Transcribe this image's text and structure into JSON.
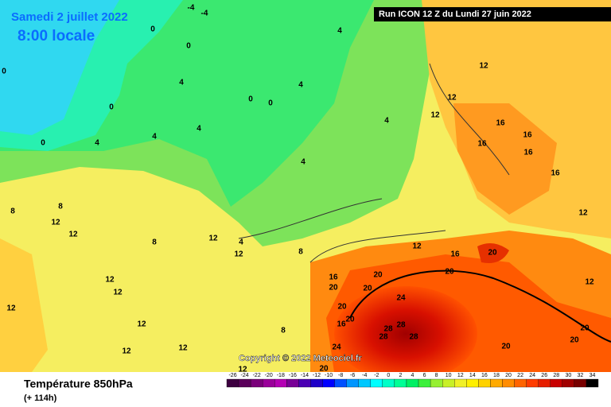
{
  "header": {
    "date": "Samedi 2 juillet 2022",
    "time": "8:00 locale",
    "run": "Run ICON 12 Z du Lundi 27 juin 2022"
  },
  "copyright": "Copyright © 2022 Meteociel.fr",
  "legend": {
    "title": "Température 850hPa",
    "subtitle": "(+ 114h)",
    "ticks": [
      -26,
      -24,
      -22,
      -20,
      -18,
      -16,
      -14,
      -12,
      -10,
      -8,
      -6,
      -4,
      -2,
      0,
      2,
      4,
      6,
      8,
      10,
      12,
      14,
      16,
      18,
      20,
      22,
      24,
      26,
      28,
      30,
      32,
      34
    ],
    "colors": [
      "#3d0040",
      "#5a005a",
      "#7a007a",
      "#9a009a",
      "#b400b4",
      "#780096",
      "#4b00b4",
      "#1e00c8",
      "#0000ff",
      "#0050ff",
      "#0096ff",
      "#00c8ff",
      "#00ffff",
      "#00ffc8",
      "#00ff96",
      "#00f064",
      "#3cf03c",
      "#96f032",
      "#c8f028",
      "#f0f028",
      "#fff000",
      "#ffd200",
      "#ffaa00",
      "#ff8c00",
      "#ff6400",
      "#ff3c00",
      "#e61e00",
      "#c80000",
      "#a00000",
      "#780000",
      "#000000"
    ]
  },
  "contour_labels": [
    -4,
    -4,
    0,
    4,
    0,
    0,
    4,
    0,
    4,
    0,
    0,
    4,
    4,
    0,
    4,
    4,
    4,
    12,
    12,
    12,
    16,
    16,
    16,
    16,
    16,
    12,
    8,
    8,
    12,
    12,
    8,
    12,
    4,
    12,
    8,
    12,
    16,
    20,
    20,
    12,
    16,
    20,
    20,
    20,
    24,
    20,
    20,
    16,
    28,
    28,
    28,
    28,
    24,
    20,
    20,
    20,
    20,
    12,
    12,
    12,
    12,
    12,
    12,
    8,
    12
  ]
}
